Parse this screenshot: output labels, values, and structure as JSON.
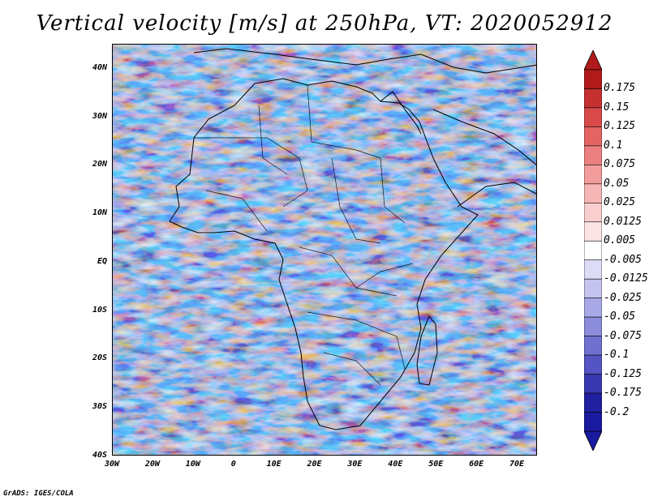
{
  "title": "Vertical velocity [m/s] at 250hPa, VT: 2020052912",
  "footer": "GrADS: IGES/COLA",
  "map": {
    "lat_labels": [
      "40N",
      "30N",
      "20N",
      "10N",
      "EQ",
      "10S",
      "20S",
      "30S",
      "40S"
    ],
    "lon_labels": [
      "30W",
      "20W",
      "10W",
      "0",
      "10E",
      "20E",
      "30E",
      "40E",
      "50E",
      "60E",
      "70E"
    ],
    "lon_range": [
      -30,
      75
    ],
    "lat_range": [
      -40,
      45
    ]
  },
  "colorbar": {
    "levels": [
      "0.175",
      "0.15",
      "0.125",
      "0.1",
      "0.075",
      "0.05",
      "0.025",
      "0.0125",
      "0.005",
      "-0.005",
      "-0.0125",
      "-0.025",
      "-0.05",
      "-0.075",
      "-0.1",
      "-0.125",
      "-0.175",
      "-0.2"
    ],
    "colors": [
      "#b01a1a",
      "#c53030",
      "#d84a4a",
      "#e46464",
      "#ec8080",
      "#f29c9c",
      "#f6b6b6",
      "#f9cece",
      "#fce4e4",
      "#ffffff",
      "#dcdcf6",
      "#c4c4ee",
      "#a8a8e6",
      "#8c8cdc",
      "#7070d0",
      "#5454c4",
      "#3838b0",
      "#2020a0",
      "#1a1aa0"
    ],
    "top_arrow_color": "#b01a1a",
    "bottom_arrow_color": "#1a1aa0"
  }
}
